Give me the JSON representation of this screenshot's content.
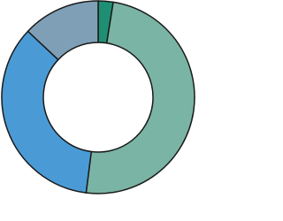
{
  "chart_data": {
    "type": "donut",
    "values": [
      2.5,
      49.5,
      35,
      13
    ],
    "colors": [
      "#1f8f73",
      "#7ab4a4",
      "#4a9bd5",
      "#7e9fb6"
    ]
  }
}
